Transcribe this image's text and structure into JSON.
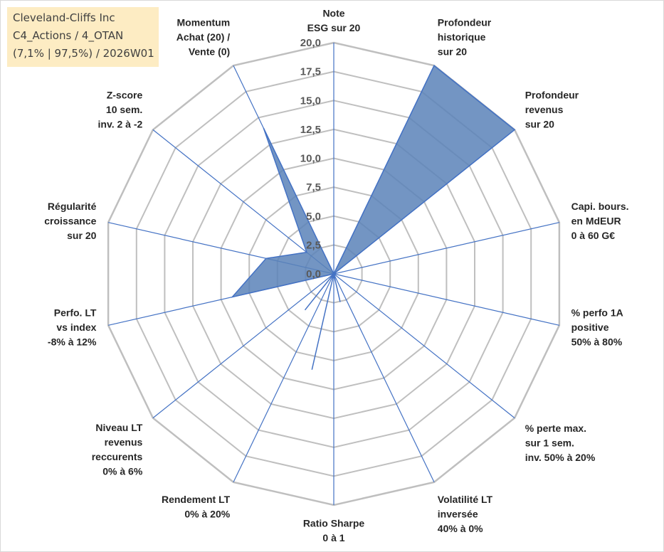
{
  "title_box": {
    "line1": "Cleveland-Cliffs Inc",
    "line2": "C4_Actions / 4_OTAN",
    "line3": "(7,1% | 97,5%) / 2026W01"
  },
  "colors": {
    "fill": "#5b82b8",
    "stroke": "#4472c4",
    "grid": "#bfbfbf",
    "spoke": "#4472c4",
    "title_bg": "#fdecc3"
  },
  "chart_data": {
    "type": "radar",
    "rmin": 0,
    "rmax": 20,
    "ticks": [
      "0,0",
      "2,5",
      "5,0",
      "7,5",
      "10,0",
      "12,5",
      "15,0",
      "17,5",
      "20,0"
    ],
    "tick_values": [
      0,
      2.5,
      5,
      7.5,
      10,
      12.5,
      15,
      17.5,
      20
    ],
    "axes": [
      {
        "lines": [
          "Note",
          "ESG sur 20"
        ],
        "value": 0
      },
      {
        "lines": [
          "Profondeur",
          "historique",
          "sur 20"
        ],
        "value": 20
      },
      {
        "lines": [
          "Profondeur",
          "revenus",
          "sur 20"
        ],
        "value": 20
      },
      {
        "lines": [
          "Capi. bours.",
          "en MdEUR",
          "0 à 60 G€"
        ],
        "value": 0
      },
      {
        "lines": [
          "% perfo 1A",
          "positive",
          "50% à 80%"
        ],
        "value": 0
      },
      {
        "lines": [
          "% perte max.",
          "sur 1 sem.",
          "inv. 50% à 20%"
        ],
        "value": 0
      },
      {
        "lines": [
          "Volatilité LT",
          "inversée",
          "40% à 0%"
        ],
        "value": 0
      },
      {
        "lines": [
          "Ratio Sharpe",
          "0 à 1"
        ],
        "value": 0
      },
      {
        "lines": [
          "Rendement LT",
          "0% à 20%"
        ],
        "value": 0
      },
      {
        "lines": [
          "Niveau LT",
          "revenus",
          "reccurents",
          "0% à 6%"
        ],
        "value": 0
      },
      {
        "lines": [
          "Perfo. LT",
          "vs index",
          "-8% à 12%"
        ],
        "value": 9
      },
      {
        "lines": [
          "Régularité",
          "croissance",
          "sur 20"
        ],
        "value": 6
      },
      {
        "lines": [
          "Z-score",
          "10 sem.",
          "inv. 2 à -2"
        ],
        "value": 3
      },
      {
        "lines": [
          "Momentum",
          "Achat (20) /",
          "Vente (0)"
        ],
        "value": 14
      }
    ],
    "extra_points": [
      {
        "between": [
          6,
          7
        ],
        "value": 2.5
      },
      {
        "between": [
          7,
          8
        ],
        "value": 8.5
      },
      {
        "between": [
          8,
          9
        ],
        "value": 4
      }
    ]
  }
}
